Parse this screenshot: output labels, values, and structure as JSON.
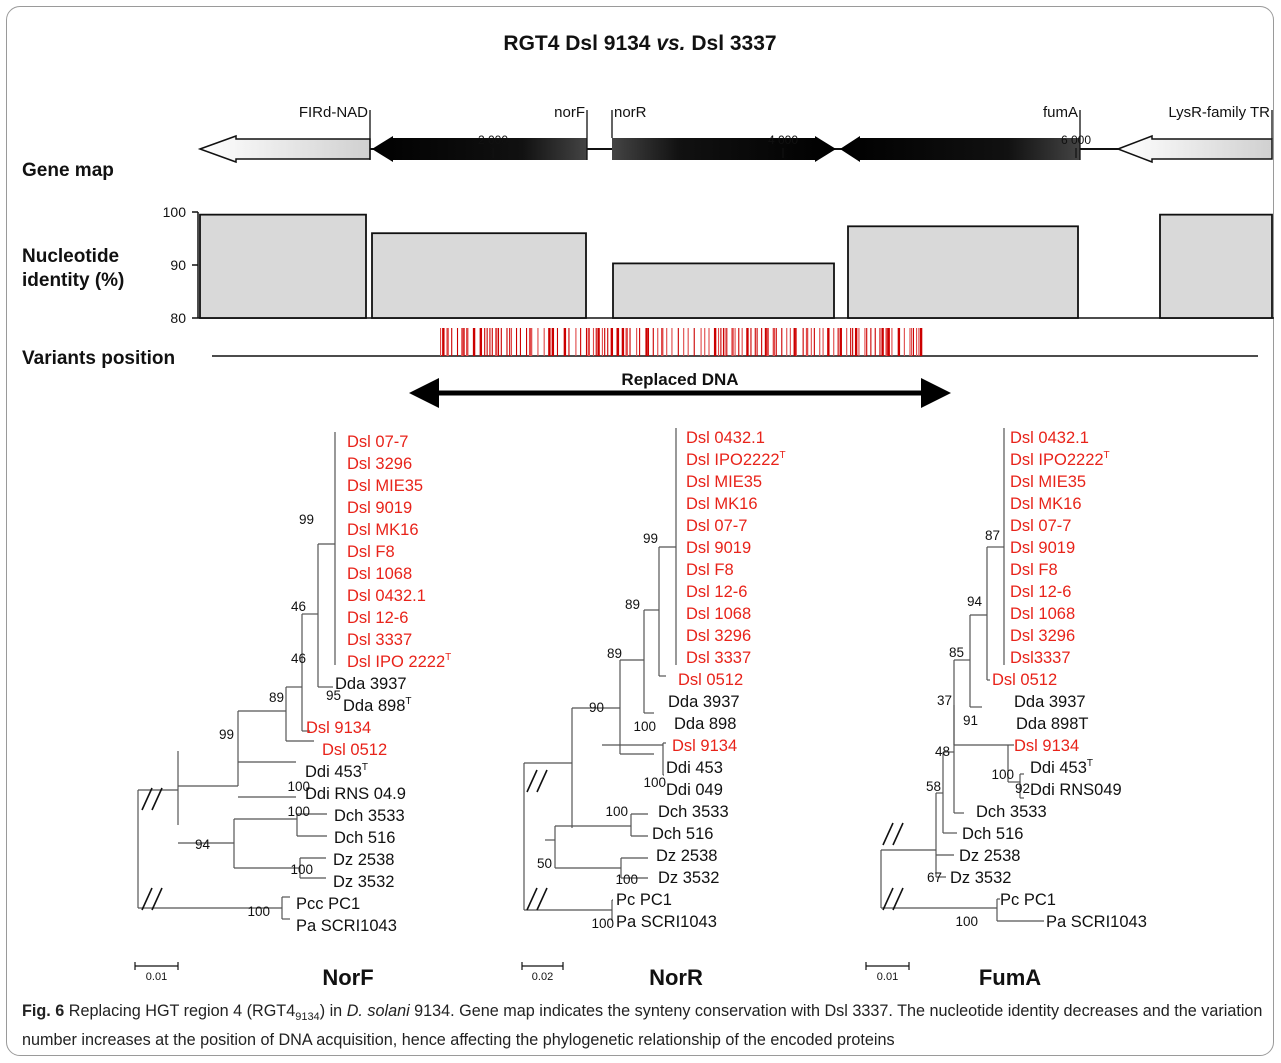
{
  "title": {
    "main": "RGT4 Dsl 9134 ",
    "italic": "vs.",
    "end": " Dsl 3337"
  },
  "gene_map": {
    "label": "Gene map",
    "genes": [
      {
        "name": "FIRd-NAD",
        "style": "white",
        "dir": "left"
      },
      {
        "name": "norF",
        "style": "black",
        "dir": "left"
      },
      {
        "name": "norR",
        "style": "black",
        "dir": "right"
      },
      {
        "name": "fumA",
        "style": "black",
        "dir": "left"
      },
      {
        "name": "LysR-family TR",
        "style": "white",
        "dir": "left"
      }
    ],
    "ticks": [
      "2 000",
      "4 000",
      "6 000"
    ]
  },
  "identity": {
    "label_line1": "Nucleotide",
    "label_line2": "identity (%)",
    "axis": [
      "100",
      "90",
      "80"
    ],
    "ylim": [
      80,
      100
    ],
    "values": [
      99.5,
      96,
      90.3,
      97.3,
      99.5
    ]
  },
  "variants": {
    "label": "Variants position",
    "color": "#cc0000"
  },
  "replaced": {
    "label": "Replaced DNA"
  },
  "trees": [
    {
      "name": "NorF",
      "scale": "0.01",
      "taxa": [
        {
          "main": "Dsl 07-7",
          "sup": "",
          "red": true
        },
        {
          "main": "Dsl 3296",
          "sup": "",
          "red": true
        },
        {
          "main": "Dsl MIE35",
          "sup": "",
          "red": true
        },
        {
          "main": "Dsl 9019",
          "sup": "",
          "red": true
        },
        {
          "main": "Dsl MK16",
          "sup": "",
          "red": true
        },
        {
          "main": "Dsl F8",
          "sup": "",
          "red": true
        },
        {
          "main": "Dsl 1068",
          "sup": "",
          "red": true
        },
        {
          "main": "Dsl 0432.1",
          "sup": "",
          "red": true
        },
        {
          "main": "Dsl 12-6",
          "sup": "",
          "red": true
        },
        {
          "main": "Dsl 3337",
          "sup": "",
          "red": true
        },
        {
          "main": "Dsl IPO 2222",
          "sup": "T",
          "red": true
        },
        {
          "main": "Dda 3937",
          "sup": "",
          "red": false
        },
        {
          "main": "Dda 898",
          "sup": "T",
          "red": false
        },
        {
          "main": "Dsl 9134",
          "sup": "",
          "red": true
        },
        {
          "main": "Dsl 0512",
          "sup": "",
          "red": true
        },
        {
          "main": "Ddi 453",
          "sup": "T",
          "red": false
        },
        {
          "main": "Ddi RNS 04.9",
          "sup": "",
          "red": false
        },
        {
          "main": "Dch 3533",
          "sup": "",
          "red": false
        },
        {
          "main": "Dch 516",
          "sup": "",
          "red": false
        },
        {
          "main": "Dz 2538",
          "sup": "",
          "red": false
        },
        {
          "main": "Dz 3532",
          "sup": "",
          "red": false
        },
        {
          "main": "Pcc PC1",
          "sup": "",
          "red": false
        },
        {
          "main": "Pa SCRI1043",
          "sup": "",
          "red": false
        }
      ],
      "support": [
        "99",
        "46",
        "46",
        "89",
        "95",
        "99",
        "100",
        "100",
        "94",
        "100",
        "100"
      ]
    },
    {
      "name": "NorR",
      "scale": "0.02",
      "taxa": [
        {
          "main": "Dsl 0432.1",
          "sup": "",
          "red": true
        },
        {
          "main": "Dsl IPO2222",
          "sup": "T",
          "red": true
        },
        {
          "main": "Dsl MIE35",
          "sup": "",
          "red": true
        },
        {
          "main": "Dsl MK16",
          "sup": "",
          "red": true
        },
        {
          "main": "Dsl 07-7",
          "sup": "",
          "red": true
        },
        {
          "main": "Dsl 9019",
          "sup": "",
          "red": true
        },
        {
          "main": "Dsl F8",
          "sup": "",
          "red": true
        },
        {
          "main": "Dsl 12-6",
          "sup": "",
          "red": true
        },
        {
          "main": "Dsl 1068",
          "sup": "",
          "red": true
        },
        {
          "main": "Dsl 3296",
          "sup": "",
          "red": true
        },
        {
          "main": "Dsl 3337",
          "sup": "",
          "red": true
        },
        {
          "main": "Dsl 0512",
          "sup": "",
          "red": true
        },
        {
          "main": "Dda 3937",
          "sup": "",
          "red": false
        },
        {
          "main": "Dda 898",
          "sup": "",
          "red": false
        },
        {
          "main": "Dsl 9134",
          "sup": "",
          "red": true
        },
        {
          "main": "Ddi 453",
          "sup": "",
          "red": false
        },
        {
          "main": "Ddi 049",
          "sup": "",
          "red": false
        },
        {
          "main": "Dch 3533",
          "sup": "",
          "red": false
        },
        {
          "main": "Dch 516",
          "sup": "",
          "red": false
        },
        {
          "main": "Dz 2538",
          "sup": "",
          "red": false
        },
        {
          "main": "Dz 3532",
          "sup": "",
          "red": false
        },
        {
          "main": "Pc PC1",
          "sup": "",
          "red": false
        },
        {
          "main": "Pa SCRI1043",
          "sup": "",
          "red": false
        }
      ],
      "support": [
        "99",
        "89",
        "89",
        "90",
        "100",
        "100",
        "100",
        "50",
        "100",
        "100"
      ]
    },
    {
      "name": "FumA",
      "scale": "0.01",
      "taxa": [
        {
          "main": "Dsl 0432.1",
          "sup": "",
          "red": true
        },
        {
          "main": "Dsl IPO2222",
          "sup": "T",
          "red": true
        },
        {
          "main": "Dsl MIE35",
          "sup": "",
          "red": true
        },
        {
          "main": "Dsl MK16",
          "sup": "",
          "red": true
        },
        {
          "main": "Dsl 07-7",
          "sup": "",
          "red": true
        },
        {
          "main": "Dsl 9019",
          "sup": "",
          "red": true
        },
        {
          "main": "Dsl F8",
          "sup": "",
          "red": true
        },
        {
          "main": "Dsl 12-6",
          "sup": "",
          "red": true
        },
        {
          "main": "Dsl 1068",
          "sup": "",
          "red": true
        },
        {
          "main": "Dsl 3296",
          "sup": "",
          "red": true
        },
        {
          "main": "Dsl3337",
          "sup": "",
          "red": true
        },
        {
          "main": "Dsl 0512",
          "sup": "",
          "red": true
        },
        {
          "main": "Dda 3937",
          "sup": "",
          "red": false
        },
        {
          "main": "Dda 898T",
          "sup": "",
          "red": false
        },
        {
          "main": "Dsl 9134",
          "sup": "",
          "red": true
        },
        {
          "main": "Ddi 453",
          "sup": "T",
          "red": false
        },
        {
          "main": "Ddi RNS049",
          "sup": "",
          "red": false
        },
        {
          "main": "Dch 3533",
          "sup": "",
          "red": false
        },
        {
          "main": "Dch 516",
          "sup": "",
          "red": false
        },
        {
          "main": "Dz 2538",
          "sup": "",
          "red": false
        },
        {
          "main": "Dz 3532",
          "sup": "",
          "red": false
        },
        {
          "main": "Pc PC1",
          "sup": "",
          "red": false
        },
        {
          "main": "Pa SCRI1043",
          "sup": "",
          "red": false
        }
      ],
      "support": [
        "87",
        "94",
        "85",
        "37",
        "91",
        "48",
        "100",
        "92",
        "58",
        "67",
        "100"
      ]
    }
  ],
  "caption": {
    "fig": "Fig. 6",
    "t1": " Replacing HGT region 4 (RGT4",
    "sub": "9134",
    "t2": ") in ",
    "italic": "D. solani",
    "t3": " 9134. Gene map indicates the synteny conservation with Dsl 3337. The nucleotide identity decreases and the variation number increases at the position of DNA acquisition, hence affecting the phylogenetic relationship of the encoded proteins"
  }
}
